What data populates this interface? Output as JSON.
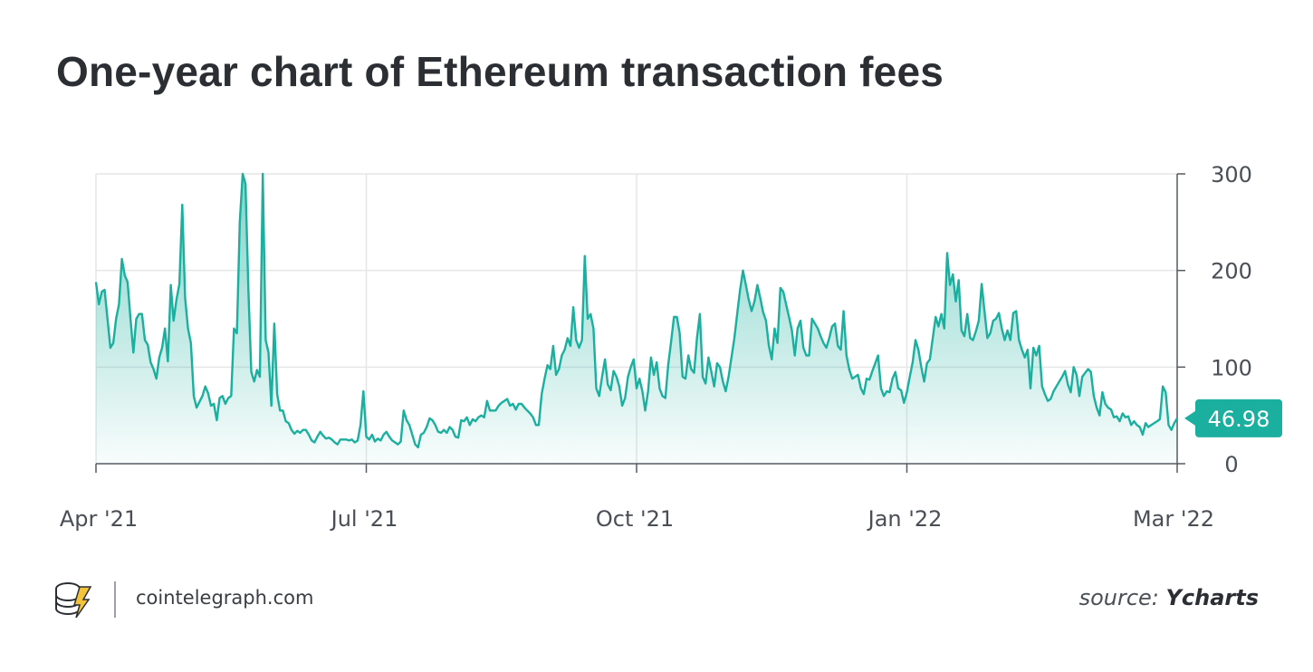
{
  "title": "One-year chart of Ethereum transaction fees",
  "colors": {
    "line": "#1aaf9e",
    "fill_top": "#1aaf9e",
    "grid": "#e6e6e6",
    "axis": "#555b61",
    "badge": "#1aaf9e",
    "logo_accent": "#f3c33a"
  },
  "footer": {
    "brand": "cointelegraph.com",
    "source_prefix": "source:",
    "source_name": "Ycharts",
    "logo_icon": "cointelegraph-coins-icon"
  },
  "chart_data": {
    "type": "area",
    "title": "One-year chart of Ethereum transaction fees",
    "xlabel": "",
    "ylabel": "",
    "x_range": [
      "Apr '21",
      "Mar '22"
    ],
    "x_ticks": [
      "Apr '21",
      "Jul '21",
      "Oct '21",
      "Jan '22",
      "Mar '22"
    ],
    "y_ticks": [
      0,
      100,
      200,
      300
    ],
    "ylim": [
      0,
      300
    ],
    "y_axis_position": "right",
    "grid": true,
    "last_value_label": "46.98",
    "last_value": 46.98,
    "series": [
      {
        "name": "Ethereum transaction fees",
        "values": [
          188,
          165,
          178,
          180,
          150,
          120,
          125,
          150,
          165,
          212,
          195,
          188,
          150,
          115,
          150,
          155,
          155,
          128,
          123,
          105,
          98,
          88,
          110,
          120,
          140,
          106,
          185,
          148,
          170,
          186,
          268,
          172,
          140,
          125,
          70,
          58,
          64,
          70,
          80,
          73,
          60,
          62,
          45,
          68,
          70,
          62,
          68,
          70,
          140,
          135,
          250,
          300,
          290,
          180,
          95,
          85,
          97,
          90,
          300,
          128,
          115,
          60,
          145,
          72,
          55,
          55,
          44,
          42,
          35,
          31,
          34,
          32,
          35,
          35,
          30,
          24,
          22,
          28,
          33,
          29,
          26,
          27,
          25,
          22,
          20,
          25,
          25,
          25,
          24,
          25,
          22,
          24,
          40,
          75,
          28,
          25,
          30,
          23,
          26,
          24,
          30,
          33,
          28,
          24,
          22,
          20,
          23,
          55,
          45,
          40,
          30,
          20,
          17,
          30,
          32,
          38,
          47,
          45,
          40,
          33,
          32,
          35,
          32,
          38,
          35,
          28,
          27,
          45,
          44,
          48,
          40,
          46,
          44,
          48,
          50,
          48,
          65,
          55,
          55,
          55,
          60,
          63,
          65,
          67,
          60,
          62,
          56,
          62,
          62,
          58,
          55,
          52,
          48,
          40,
          40,
          72,
          88,
          102,
          98,
          122,
          92,
          98,
          112,
          118,
          130,
          122,
          162,
          128,
          120,
          128,
          215,
          150,
          155,
          140,
          78,
          70,
          90,
          108,
          82,
          76,
          96,
          90,
          80,
          60,
          68,
          90,
          100,
          108,
          78,
          88,
          75,
          55,
          75,
          110,
          92,
          105,
          78,
          70,
          68,
          102,
          126,
          152,
          152,
          135,
          90,
          88,
          112,
          98,
          94,
          130,
          155,
          90,
          83,
          110,
          95,
          80,
          104,
          100,
          85,
          75,
          90,
          110,
          130,
          155,
          180,
          200,
          185,
          170,
          158,
          168,
          185,
          172,
          157,
          148,
          122,
          108,
          140,
          125,
          182,
          178,
          165,
          152,
          138,
          112,
          140,
          148,
          120,
          112,
          112,
          150,
          145,
          140,
          132,
          125,
          120,
          130,
          142,
          145,
          122,
          118,
          158,
          112,
          97,
          88,
          90,
          92,
          78,
          72,
          88,
          87,
          96,
          104,
          112,
          78,
          70,
          75,
          74,
          88,
          95,
          78,
          76,
          63,
          74,
          90,
          105,
          128,
          118,
          100,
          85,
          104,
          108,
          130,
          152,
          142,
          155,
          140,
          218,
          185,
          196,
          168,
          190,
          138,
          132,
          155,
          130,
          128,
          137,
          148,
          186,
          158,
          130,
          135,
          148,
          150,
          156,
          140,
          128,
          138,
          128,
          156,
          158,
          128,
          118,
          110,
          118,
          78,
          120,
          112,
          122,
          80,
          72,
          65,
          67,
          75,
          80,
          85,
          90,
          96,
          82,
          74,
          100,
          92,
          70,
          90,
          94,
          98,
          95,
          70,
          58,
          50,
          74,
          62,
          58,
          56,
          48,
          49,
          44,
          52,
          48,
          49,
          40,
          44,
          40,
          38,
          30,
          42,
          38,
          40,
          42,
          44,
          46,
          80,
          74,
          40,
          35,
          42,
          46.98
        ]
      }
    ]
  }
}
